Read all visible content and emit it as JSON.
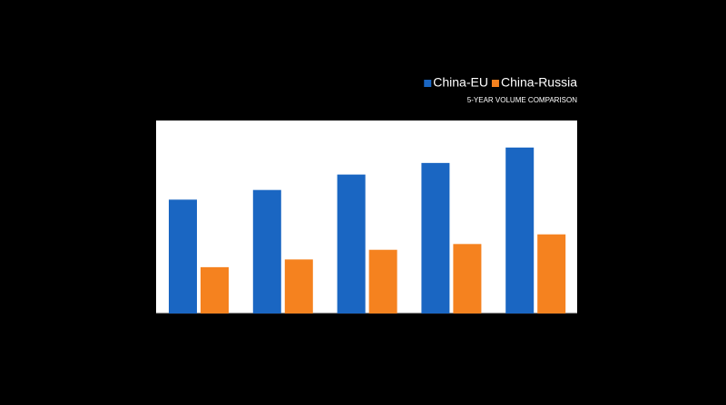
{
  "chart_data": {
    "type": "bar",
    "subtitle": "5-YEAR VOLUME COMPARISON",
    "categories": [
      null,
      null,
      null,
      null,
      null
    ],
    "series": [
      {
        "name": "China-EU",
        "color": "#1a66c2",
        "values": [
          59,
          64,
          72,
          78,
          86
        ]
      },
      {
        "name": "China-Russia",
        "color": "#f5821f",
        "values": [
          24,
          28,
          33,
          36,
          41
        ]
      }
    ],
    "ylim": [
      0,
      100
    ]
  }
}
